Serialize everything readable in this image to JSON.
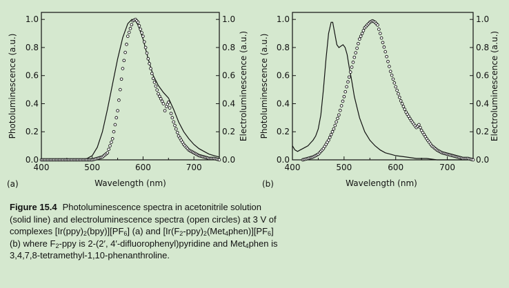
{
  "figure": {
    "caption_label": "Figure 15.4",
    "caption_parts": [
      "Photoluminescence spectra in acetonitrile solution (solid line) and electroluminescence spectra (open circles) at 3 V of complexes [Ir(ppy)",
      "2",
      "(bpy)][PF",
      "6",
      "] (a) and [Ir(F",
      "2",
      "-ppy)",
      "2",
      "(Met",
      "4",
      "phen)][PF",
      "6",
      "] (b) where F",
      "2",
      "-ppy is 2-(2′, 4′-difluorophenyl)pyridine and Met",
      "4",
      "phen is 3,4,7,8-tetramethyl-1,10-phenanthroline."
    ]
  },
  "colors": {
    "background": "#d5e8cf",
    "line": "#111111",
    "marker_fill": "#ffffff"
  },
  "chart_data": [
    {
      "panel": "(a)",
      "type": "line",
      "xlabel": "Wavelength (nm)",
      "ylabel_left": "Photoluminescence (a.u.)",
      "ylabel_right": "Electroluminescence (a.u.)",
      "xlim": [
        400,
        750
      ],
      "ylim": [
        0,
        1.05
      ],
      "xticks": [
        "400",
        "500",
        "600",
        "700"
      ],
      "xtick_values": [
        400,
        500,
        600,
        700
      ],
      "yticks": [
        "0.0",
        "0.2",
        "0.4",
        "0.6",
        "0.8",
        "1.0"
      ],
      "ytick_values": [
        0.0,
        0.2,
        0.4,
        0.6,
        0.8,
        1.0
      ],
      "series": [
        {
          "style": "solid",
          "x": [
            400,
            480,
            490,
            500,
            510,
            520,
            530,
            540,
            550,
            560,
            570,
            578,
            585,
            590,
            600,
            610,
            620,
            630,
            640,
            650,
            660,
            670,
            680,
            690,
            700,
            710,
            720,
            730,
            740,
            750
          ],
          "y": [
            0.0,
            0.0,
            0.01,
            0.03,
            0.09,
            0.2,
            0.36,
            0.54,
            0.72,
            0.87,
            0.97,
            1.0,
            0.99,
            0.96,
            0.86,
            0.72,
            0.6,
            0.53,
            0.48,
            0.44,
            0.36,
            0.27,
            0.2,
            0.15,
            0.11,
            0.08,
            0.06,
            0.04,
            0.03,
            0.02
          ]
        },
        {
          "style": "circles",
          "x": [
            400,
            500,
            510,
            520,
            530,
            540,
            550,
            560,
            570,
            580,
            585,
            590,
            600,
            610,
            620,
            630,
            640,
            643,
            646,
            650,
            655,
            660,
            670,
            680,
            690,
            700,
            710,
            720,
            730,
            740,
            750
          ],
          "y": [
            0.0,
            0.0,
            0.01,
            0.02,
            0.05,
            0.15,
            0.35,
            0.65,
            0.88,
            0.99,
            1.0,
            0.98,
            0.88,
            0.72,
            0.58,
            0.47,
            0.4,
            0.35,
            0.38,
            0.41,
            0.33,
            0.27,
            0.17,
            0.11,
            0.07,
            0.05,
            0.03,
            0.02,
            0.01,
            0.01,
            0.0
          ]
        }
      ]
    },
    {
      "panel": "(b)",
      "type": "line",
      "xlabel": "Wavelength (nm)",
      "ylabel_left": "Photoluminescence (a.u.)",
      "ylabel_right": "Electroluminescence (a.u.)",
      "xlim": [
        400,
        750
      ],
      "ylim": [
        0,
        1.05
      ],
      "xticks": [
        "400",
        "500",
        "600",
        "700"
      ],
      "xtick_values": [
        400,
        500,
        600,
        700
      ],
      "yticks": [
        "0.0",
        "0.2",
        "0.4",
        "0.6",
        "0.8",
        "1.0"
      ],
      "ytick_values": [
        0.0,
        0.2,
        0.4,
        0.6,
        0.8,
        1.0
      ],
      "series": [
        {
          "style": "solid",
          "x": [
            400,
            405,
            410,
            415,
            420,
            425,
            430,
            435,
            440,
            445,
            450,
            455,
            460,
            465,
            470,
            475,
            478,
            482,
            486,
            490,
            494,
            498,
            502,
            506,
            510,
            515,
            520,
            530,
            540,
            550,
            560,
            570,
            580,
            590,
            600,
            620,
            640,
            660,
            680,
            700,
            720,
            740
          ],
          "y": [
            0.1,
            0.07,
            0.06,
            0.07,
            0.08,
            0.09,
            0.1,
            0.12,
            0.14,
            0.17,
            0.22,
            0.32,
            0.5,
            0.72,
            0.9,
            0.98,
            0.98,
            0.9,
            0.82,
            0.8,
            0.81,
            0.82,
            0.8,
            0.75,
            0.66,
            0.56,
            0.45,
            0.3,
            0.2,
            0.14,
            0.1,
            0.07,
            0.05,
            0.04,
            0.03,
            0.02,
            0.01,
            0.01,
            0.0,
            0.0,
            0.0,
            0.0
          ]
        },
        {
          "style": "circles",
          "x": [
            420,
            430,
            440,
            450,
            460,
            470,
            480,
            490,
            500,
            510,
            520,
            530,
            540,
            550,
            555,
            560,
            565,
            570,
            580,
            590,
            600,
            610,
            620,
            630,
            640,
            645,
            650,
            655,
            660,
            670,
            680,
            690,
            700,
            710,
            720,
            730,
            740,
            750
          ],
          "y": [
            0.0,
            0.01,
            0.02,
            0.04,
            0.08,
            0.14,
            0.22,
            0.32,
            0.45,
            0.59,
            0.73,
            0.86,
            0.94,
            0.98,
            0.99,
            0.98,
            0.96,
            0.9,
            0.77,
            0.63,
            0.52,
            0.42,
            0.34,
            0.28,
            0.23,
            0.25,
            0.21,
            0.18,
            0.15,
            0.1,
            0.07,
            0.05,
            0.04,
            0.03,
            0.02,
            0.01,
            0.01,
            0.0
          ]
        }
      ]
    }
  ]
}
